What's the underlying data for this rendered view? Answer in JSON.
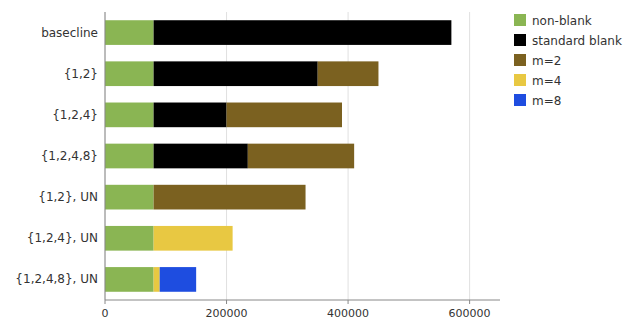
{
  "chart_data": {
    "type": "bar",
    "orientation": "horizontal",
    "stacked": true,
    "categories": [
      "basecline",
      "{1,2}",
      "{1,2,4}",
      "{1,2,4,8}",
      "{1,2}, UN",
      "{1,2,4}, UN",
      "{1,2,4,8}, UN"
    ],
    "series": [
      {
        "name": "non-blank",
        "color": "#8ab553",
        "values": [
          80000,
          80000,
          80000,
          80000,
          80000,
          80000,
          80000
        ]
      },
      {
        "name": "standard blank",
        "color": "#000000",
        "values": [
          490000,
          270000,
          120000,
          155000,
          0,
          0,
          0
        ]
      },
      {
        "name": "m=2",
        "color": "#7b6120",
        "values": [
          0,
          100000,
          190000,
          175000,
          250000,
          0,
          0
        ]
      },
      {
        "name": "m=4",
        "color": "#e8c842",
        "values": [
          0,
          0,
          0,
          0,
          0,
          130000,
          10000
        ]
      },
      {
        "name": "m=8",
        "color": "#1e4de0",
        "values": [
          0,
          0,
          0,
          0,
          0,
          0,
          60000
        ]
      }
    ],
    "xlim": [
      0,
      650000
    ],
    "xticks": [
      0,
      200000,
      400000,
      600000
    ],
    "grid": true,
    "legend": "right"
  }
}
